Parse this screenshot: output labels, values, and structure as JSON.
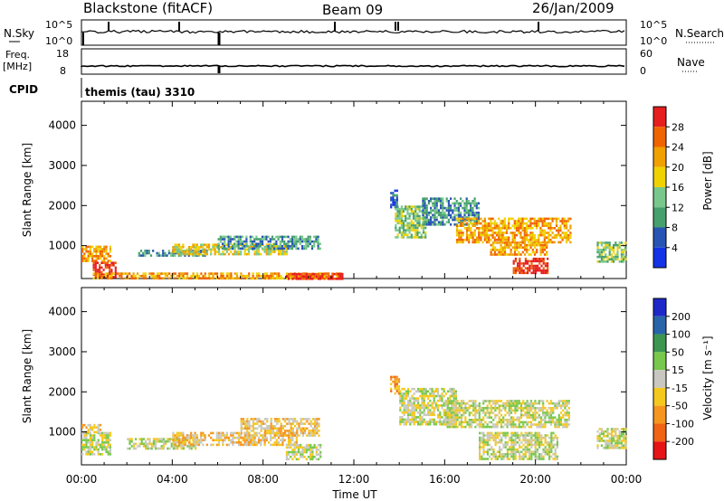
{
  "header": {
    "station": "Blackstone (fitACF)",
    "beam": "Beam 09",
    "date": "26/Jan/2009"
  },
  "top_panels": {
    "nsky_label": "N.Sky",
    "nsearch_label": "N.Search",
    "nsky_ticks": [
      "10^5",
      "10^0"
    ],
    "nsearch_ticks": [
      "10^5",
      "10^0"
    ],
    "freq_label_1": "Freq.",
    "freq_label_2": "[MHz]",
    "freq_ticks": [
      "18",
      "8"
    ],
    "nave_label": "Nave",
    "nave_ticks": [
      "60",
      "0"
    ],
    "cpid_label": "CPID",
    "cpid_value": "themis (tau) 3310"
  },
  "colors": {
    "power": [
      "#1432e6",
      "#2855b4",
      "#46a06e",
      "#78c88c",
      "#f0d200",
      "#f0a000",
      "#f06400",
      "#e61e1e"
    ],
    "velocity": [
      "#1e28c8",
      "#2864aa",
      "#3c9650",
      "#78c84b",
      "#c8c8c0",
      "#f5c81e",
      "#f5961e",
      "#f06414",
      "#e61414"
    ]
  },
  "chart_data": [
    {
      "type": "heatmap",
      "name": "power",
      "xlabel": "Time UT",
      "ylabel": "Slant Range [km]",
      "xlim": [
        0,
        24
      ],
      "ylim": [
        180,
        4600
      ],
      "x_ticks": [
        "00:00",
        "04:00",
        "08:00",
        "12:00",
        "16:00",
        "20:00",
        "00:00"
      ],
      "y_ticks": [
        1000,
        2000,
        3000,
        4000
      ],
      "colorbar_label": "Power [dB]",
      "colorbar_ticks": [
        "4",
        "8",
        "12",
        "16",
        "20",
        "24",
        "28"
      ],
      "colorbar_range": [
        0,
        30
      ],
      "regions": [
        {
          "t0": 0.0,
          "t1": 1.3,
          "r0": 600,
          "r1": 1000,
          "level": 5
        },
        {
          "t0": 0.5,
          "t1": 1.5,
          "r0": 200,
          "r1": 600,
          "level": 7
        },
        {
          "t0": 2.5,
          "t1": 5.5,
          "r0": 750,
          "r1": 900,
          "level": 2
        },
        {
          "t0": 4.0,
          "t1": 9.0,
          "r0": 800,
          "r1": 1050,
          "level": 4
        },
        {
          "t0": 6.0,
          "t1": 10.5,
          "r0": 900,
          "r1": 1250,
          "level": 2
        },
        {
          "t0": 0.5,
          "t1": 11.5,
          "r0": 200,
          "r1": 330,
          "level": 5
        },
        {
          "t0": 9.0,
          "t1": 11.5,
          "r0": 200,
          "r1": 320,
          "level": 7
        },
        {
          "t0": 13.6,
          "t1": 13.9,
          "r0": 1950,
          "r1": 2400,
          "level": 1
        },
        {
          "t0": 13.8,
          "t1": 15.2,
          "r0": 1200,
          "r1": 2000,
          "level": 3
        },
        {
          "t0": 15.0,
          "t1": 17.5,
          "r0": 1500,
          "r1": 2200,
          "level": 2
        },
        {
          "t0": 16.5,
          "t1": 21.5,
          "r0": 1100,
          "r1": 1700,
          "level": 5
        },
        {
          "t0": 18.0,
          "t1": 20.5,
          "r0": 800,
          "r1": 1100,
          "level": 5
        },
        {
          "t0": 19.0,
          "t1": 20.5,
          "r0": 300,
          "r1": 700,
          "level": 7
        },
        {
          "t0": 22.7,
          "t1": 24.0,
          "r0": 600,
          "r1": 1100,
          "level": 3
        }
      ]
    },
    {
      "type": "heatmap",
      "name": "velocity",
      "xlabel": "Time UT",
      "ylabel": "Slant Range [km]",
      "xlim": [
        0,
        24
      ],
      "ylim": [
        180,
        4600
      ],
      "x_ticks": [
        "00:00",
        "04:00",
        "08:00",
        "12:00",
        "16:00",
        "20:00",
        "00:00"
      ],
      "y_ticks": [
        1000,
        2000,
        3000,
        4000
      ],
      "colorbar_label": "Velocity [m s⁻¹]",
      "colorbar_ticks": [
        "200",
        "100",
        "50",
        "15",
        "-15",
        "-50",
        "-100",
        "-200"
      ],
      "colorbar_range": [
        -250,
        250
      ],
      "regions": [
        {
          "t0": 0.0,
          "t1": 1.3,
          "r0": 450,
          "r1": 1000,
          "level": 4
        },
        {
          "t0": 0.0,
          "t1": 0.8,
          "r0": 1000,
          "r1": 1200,
          "level": 5
        },
        {
          "t0": 2.0,
          "t1": 5.0,
          "r0": 600,
          "r1": 850,
          "level": 4
        },
        {
          "t0": 4.0,
          "t1": 9.5,
          "r0": 700,
          "r1": 1000,
          "level": 5
        },
        {
          "t0": 7.0,
          "t1": 10.5,
          "r0": 900,
          "r1": 1350,
          "level": 5
        },
        {
          "t0": 9.0,
          "t1": 10.5,
          "r0": 300,
          "r1": 700,
          "level": 4
        },
        {
          "t0": 13.6,
          "t1": 14.0,
          "r0": 1950,
          "r1": 2400,
          "level": 6
        },
        {
          "t0": 14.0,
          "t1": 16.5,
          "r0": 1200,
          "r1": 2100,
          "level": 4
        },
        {
          "t0": 16.0,
          "t1": 21.5,
          "r0": 1100,
          "r1": 1800,
          "level": 4
        },
        {
          "t0": 17.5,
          "t1": 21.0,
          "r0": 300,
          "r1": 1000,
          "level": 4
        },
        {
          "t0": 22.7,
          "t1": 24.0,
          "r0": 600,
          "r1": 1100,
          "level": 4
        }
      ]
    }
  ]
}
